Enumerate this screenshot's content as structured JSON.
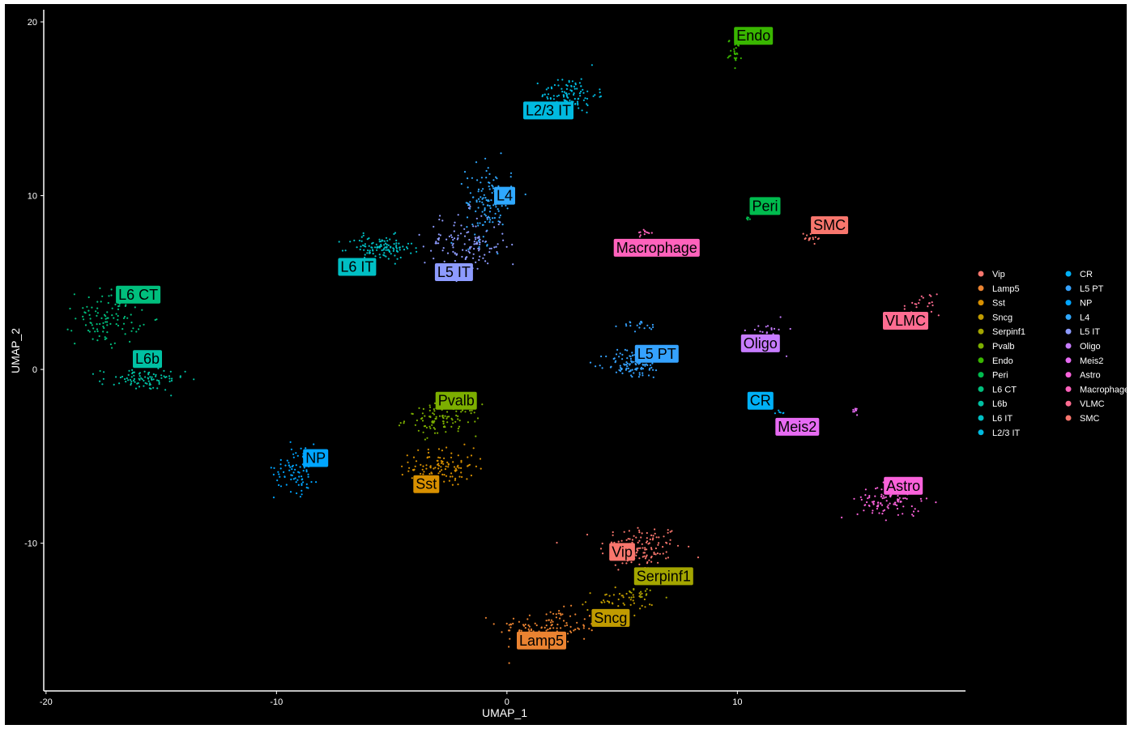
{
  "chart_data": {
    "type": "scatter",
    "xlabel": "UMAP_1",
    "ylabel": "UMAP_2",
    "xlim": [
      -20.1,
      19.9
    ],
    "ylim": [
      -18.5,
      20.7
    ],
    "xticks": [
      -20,
      -10,
      0,
      10
    ],
    "yticks": [
      -10,
      0,
      10,
      20
    ],
    "grid": false,
    "legend_position": "right",
    "legend_columns": 2,
    "background": "#000000",
    "series": [
      {
        "name": "Vip",
        "color": "#F8766D",
        "label_at": [
          5.0,
          -10.5
        ],
        "clusters": [
          {
            "x": 5.8,
            "y": -10.3,
            "sx": 0.9,
            "sy": 0.7,
            "n": 130
          }
        ]
      },
      {
        "name": "Lamp5",
        "color": "#EA8331",
        "label_at": [
          1.5,
          -15.6
        ],
        "clusters": [
          {
            "x": 1.8,
            "y": -14.8,
            "sx": 1.1,
            "sy": 0.5,
            "n": 110
          }
        ]
      },
      {
        "name": "Sst",
        "color": "#D89000",
        "label_at": [
          -3.5,
          -6.6
        ],
        "clusters": [
          {
            "x": -2.8,
            "y": -5.6,
            "sx": 0.7,
            "sy": 0.55,
            "n": 110
          }
        ]
      },
      {
        "name": "Sncg",
        "color": "#C09B00",
        "label_at": [
          4.5,
          -14.3
        ],
        "clusters": [
          {
            "x": 4.8,
            "y": -13.3,
            "sx": 0.8,
            "sy": 0.3,
            "n": 45
          }
        ]
      },
      {
        "name": "Serpinf1",
        "color": "#A3A500",
        "label_at": [
          6.8,
          -11.9
        ],
        "clusters": [
          {
            "x": 5.8,
            "y": -12.9,
            "sx": 0.4,
            "sy": 0.2,
            "n": 15
          }
        ]
      },
      {
        "name": "Pvalb",
        "color": "#7CAE00",
        "label_at": [
          -2.2,
          -1.8
        ],
        "clusters": [
          {
            "x": -2.8,
            "y": -2.9,
            "sx": 0.8,
            "sy": 0.45,
            "n": 100
          }
        ]
      },
      {
        "name": "Endo",
        "color": "#39B600",
        "label_at": [
          10.7,
          19.2
        ],
        "clusters": [
          {
            "x": 9.9,
            "y": 18.3,
            "sx": 0.15,
            "sy": 0.35,
            "n": 25
          }
        ]
      },
      {
        "name": "Peri",
        "color": "#00BB4E",
        "label_at": [
          11.2,
          9.4
        ],
        "clusters": [
          {
            "x": 10.5,
            "y": 8.7,
            "sx": 0.05,
            "sy": 0.05,
            "n": 6
          }
        ]
      },
      {
        "name": "L6 CT",
        "color": "#00BF7D",
        "label_at": [
          -16.0,
          4.3
        ],
        "clusters": [
          {
            "x": -17.3,
            "y": 3.0,
            "sx": 0.7,
            "sy": 0.8,
            "n": 110
          }
        ]
      },
      {
        "name": "L6b",
        "color": "#00C1A3",
        "label_at": [
          -15.6,
          0.6
        ],
        "clusters": [
          {
            "x": -15.8,
            "y": -0.6,
            "sx": 0.9,
            "sy": 0.3,
            "n": 90
          }
        ]
      },
      {
        "name": "L6 IT",
        "color": "#00BFC4",
        "label_at": [
          -6.5,
          5.9
        ],
        "clusters": [
          {
            "x": -5.5,
            "y": 7.0,
            "sx": 0.7,
            "sy": 0.35,
            "n": 120
          }
        ]
      },
      {
        "name": "L2/3 IT",
        "color": "#00BAE0",
        "label_at": [
          1.8,
          14.9
        ],
        "clusters": [
          {
            "x": 2.7,
            "y": 15.8,
            "sx": 0.6,
            "sy": 0.5,
            "n": 110
          }
        ]
      },
      {
        "name": "CR",
        "color": "#00B0F6",
        "label_at": [
          11.0,
          -1.8
        ],
        "clusters": [
          {
            "x": 11.9,
            "y": -2.5,
            "sx": 0.1,
            "sy": 0.1,
            "n": 6
          }
        ]
      },
      {
        "name": "L5 PT",
        "color": "#35A2FF",
        "label_at": [
          6.5,
          0.9
        ],
        "clusters": [
          {
            "x": 5.5,
            "y": 0.3,
            "sx": 0.6,
            "sy": 0.4,
            "n": 110
          },
          {
            "x": 5.8,
            "y": 2.5,
            "sx": 0.4,
            "sy": 0.15,
            "n": 20
          }
        ]
      },
      {
        "name": "NP",
        "color": "#00A5FF",
        "label_at": [
          -8.3,
          -5.1
        ],
        "clusters": [
          {
            "x": -9.1,
            "y": -5.7,
            "sx": 0.5,
            "sy": 0.7,
            "n": 90
          }
        ]
      },
      {
        "name": "L4",
        "color": "#2FA8FF",
        "label_at": [
          -0.1,
          10.0
        ],
        "clusters": [
          {
            "x": -0.8,
            "y": 9.6,
            "sx": 0.5,
            "sy": 1.1,
            "n": 130
          }
        ]
      },
      {
        "name": "L5 IT",
        "color": "#8D9BFF",
        "label_at": [
          -2.3,
          5.6
        ],
        "clusters": [
          {
            "x": -1.8,
            "y": 7.2,
            "sx": 0.9,
            "sy": 0.9,
            "n": 130
          }
        ]
      },
      {
        "name": "Oligo",
        "color": "#C77CFF",
        "label_at": [
          11.0,
          1.5
        ],
        "clusters": [
          {
            "x": 11.3,
            "y": 2.2,
            "sx": 0.4,
            "sy": 0.5,
            "n": 25
          }
        ]
      },
      {
        "name": "Meis2",
        "color": "#E76BF3",
        "label_at": [
          12.6,
          -3.3
        ],
        "clusters": [
          {
            "x": 15.1,
            "y": -2.4,
            "sx": 0.1,
            "sy": 0.1,
            "n": 8
          }
        ]
      },
      {
        "name": "Astro",
        "color": "#FA62DB",
        "label_at": [
          17.2,
          -6.7
        ],
        "clusters": [
          {
            "x": 16.6,
            "y": -7.6,
            "sx": 0.7,
            "sy": 0.5,
            "n": 100
          }
        ]
      },
      {
        "name": "Macrophage",
        "color": "#FF62BC",
        "label_at": [
          6.5,
          7.0
        ],
        "clusters": [
          {
            "x": 6.0,
            "y": 7.9,
            "sx": 0.2,
            "sy": 0.1,
            "n": 12
          }
        ]
      },
      {
        "name": "VLMC",
        "color": "#FF6C91",
        "label_at": [
          17.3,
          2.8
        ],
        "clusters": [
          {
            "x": 18.0,
            "y": 3.6,
            "sx": 0.4,
            "sy": 0.4,
            "n": 25
          }
        ]
      },
      {
        "name": "SMC",
        "color": "#F8766D",
        "label_at": [
          14.0,
          8.3
        ],
        "clusters": [
          {
            "x": 13.2,
            "y": 7.6,
            "sx": 0.25,
            "sy": 0.15,
            "n": 15
          }
        ]
      }
    ]
  }
}
